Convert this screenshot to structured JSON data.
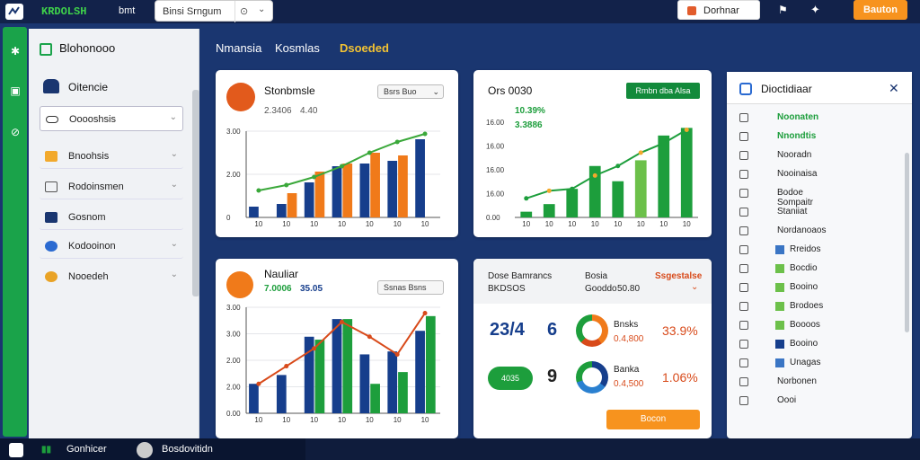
{
  "topbar": {
    "brand": "KRDOLSH",
    "link": "bmt",
    "search_value": "Binsi Srngum",
    "account_button": "Dorhnar",
    "cta_button": "Bauton",
    "icons": [
      "logo-icon",
      "zoom-icon",
      "chevron-down-icon",
      "bell-icon",
      "gear-icon"
    ]
  },
  "rail": {
    "icons": [
      "star-icon",
      "dashboard-icon",
      "settings-icon"
    ]
  },
  "sidebar": {
    "header": "Blohonooo",
    "section": "Oitencie",
    "items": [
      {
        "label": "Ooooshsis",
        "icon": "link-icon"
      },
      {
        "label": "Bnoohsis",
        "icon": "folder-icon"
      },
      {
        "label": "Rodoinsmen",
        "icon": "monitor-icon"
      },
      {
        "label": "Gosnom",
        "icon": "card-icon"
      },
      {
        "label": "Kodooinon",
        "icon": "globe-icon"
      },
      {
        "label": "Nooedeh",
        "icon": "target-icon"
      }
    ]
  },
  "tabs": [
    "Nmansia",
    "Kosmlas",
    "Dsoeded"
  ],
  "card1": {
    "title": "Stonbmsle",
    "sub_left": "2.3406",
    "sub_right": "4.40",
    "dropdown": "Bsrs  Buo",
    "chart_data": {
      "type": "bar",
      "categories": [
        "10",
        "10",
        "10",
        "10",
        "10",
        "10",
        "10"
      ],
      "series": [
        {
          "name": "Blue",
          "values": [
            0.4,
            0.5,
            1.3,
            1.9,
            2.0,
            2.1,
            2.9
          ],
          "color": "#163e8c"
        },
        {
          "name": "Orange",
          "values": [
            0,
            0.9,
            1.7,
            2.0,
            2.4,
            2.3,
            0
          ],
          "color": "#f07a1a"
        }
      ],
      "line": [
        1.0,
        1.2,
        1.5,
        1.9,
        2.4,
        2.8,
        3.1
      ],
      "yticks": [
        "3.00",
        "2.00",
        "0"
      ]
    }
  },
  "card2": {
    "title": "Ors 0030",
    "badge": "Rmbn  dba  Alsa",
    "ylabels": [
      "16.00",
      "16.00",
      "16.00",
      "16.00",
      "0.00"
    ],
    "sub_a": "10.39%",
    "sub_b": "3.3886",
    "chart_data": {
      "type": "bar",
      "categories": [
        "10",
        "10",
        "10",
        "10",
        "10",
        "10",
        "10",
        "10"
      ],
      "values": [
        0.3,
        0.7,
        1.5,
        2.7,
        1.9,
        3.0,
        4.3,
        4.7
      ],
      "line": [
        1.0,
        1.4,
        1.5,
        2.2,
        2.7,
        3.4,
        3.9,
        4.6
      ]
    }
  },
  "card3": {
    "title": "Nauliar",
    "sub_left": "7.0006",
    "sub_right": "35.05",
    "dropdown": "Ssnas  Bsns",
    "chart_data": {
      "type": "bar",
      "categories": [
        "10",
        "10",
        "10",
        "10",
        "10",
        "10",
        "10"
      ],
      "series": [
        {
          "name": "Blue",
          "values": [
            1.0,
            1.3,
            2.6,
            3.2,
            2.0,
            2.1,
            2.8
          ],
          "color": "#163e8c"
        },
        {
          "name": "Green",
          "values": [
            0,
            0,
            2.5,
            3.2,
            1.0,
            1.4,
            3.3
          ],
          "color": "#1d9e3c"
        }
      ],
      "line": [
        1.0,
        1.6,
        2.2,
        3.1,
        2.6,
        2.0,
        3.4
      ],
      "yticks": [
        "3.00",
        "3.00",
        "2.00",
        "2.00",
        "0.00"
      ]
    }
  },
  "card4": {
    "head_left": "Dose Bamrancs",
    "head_mid": "Bosia",
    "head_right": "Ssgestalse",
    "row_left": "BKDSOS",
    "row_mid": "Gooddo",
    "row_mid_b": "50.80",
    "big1": "23/4",
    "big2": "6",
    "big3": "9",
    "cloud": "4035",
    "d1_label": "Bnsks",
    "d1_val": "0.4,800",
    "d1_pct": "33.9%",
    "d2_label": "Banka",
    "d2_val": "0.4,500",
    "d2_pct": "1.06%",
    "button": "Bocon"
  },
  "rightpanel": {
    "title": "Dioctidiaar",
    "items": [
      {
        "label": "Noonaten",
        "color": "#1d9e3c"
      },
      {
        "label": "Nnondtis",
        "color": "#1d9e3c"
      },
      {
        "label": "Nooradn",
        "color": "#222"
      },
      {
        "label": "Nooinaisa",
        "color": "#222"
      },
      {
        "label": "Bodoe Sompaitr",
        "color": "#222"
      },
      {
        "label": "Staniiat",
        "color": "#222"
      },
      {
        "label": "Nordanoaos",
        "color": "#222"
      },
      {
        "label": "Rreidos",
        "color": "#222",
        "swatch": "#3a75c4"
      },
      {
        "label": "Bocdio",
        "color": "#222",
        "swatch": "#6cc04a"
      },
      {
        "label": "Booino",
        "color": "#222",
        "swatch": "#6cc04a"
      },
      {
        "label": "Brodoes",
        "color": "#222",
        "swatch": "#6cc04a"
      },
      {
        "label": "Boooos",
        "color": "#222",
        "swatch": "#6cc04a"
      },
      {
        "label": "Booino",
        "color": "#222",
        "swatch": "#163e8c"
      },
      {
        "label": "Unagas",
        "color": "#222",
        "swatch": "#3a75c4"
      },
      {
        "label": "Norbonen",
        "color": "#222"
      },
      {
        "label": "Oooi",
        "color": "#222"
      }
    ]
  },
  "bottombar": {
    "left_label": "Gonhicer",
    "right_label": "Bosdovitidn"
  }
}
